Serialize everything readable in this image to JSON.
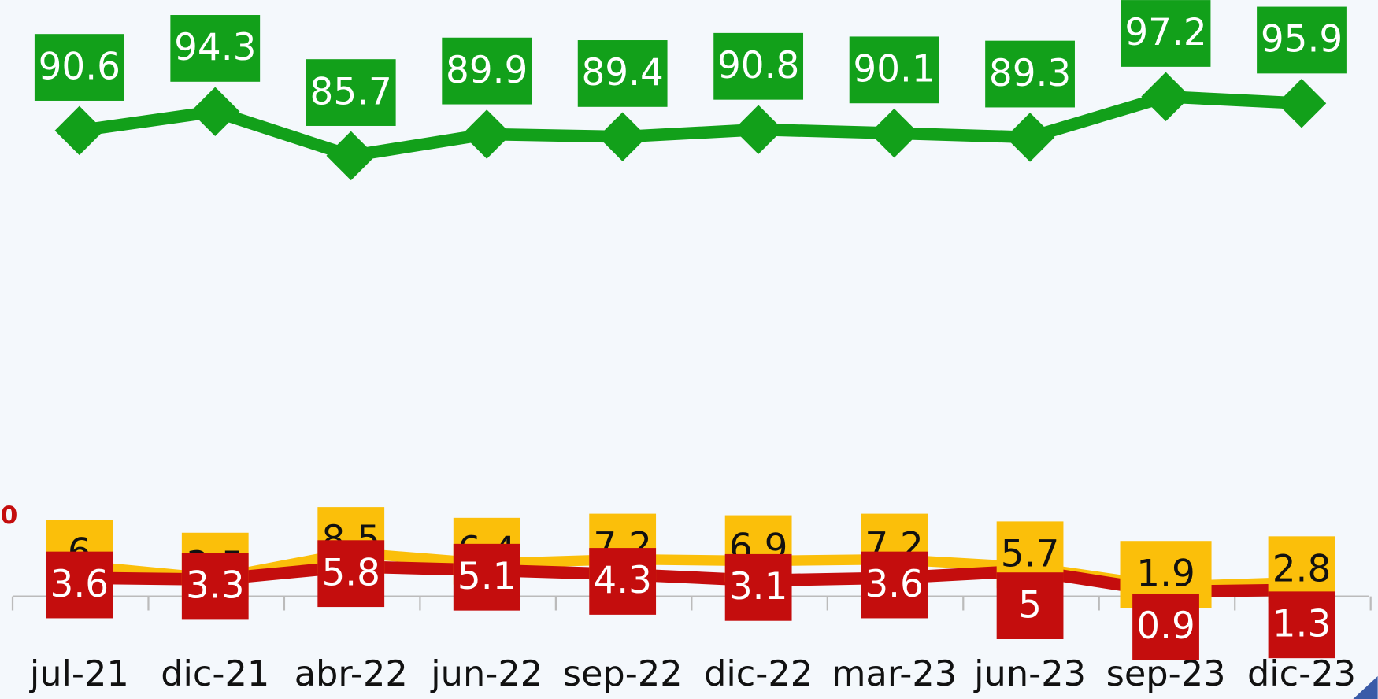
{
  "chart_data": {
    "type": "line",
    "categories": [
      "jul-21",
      "dic-21",
      "abr-22",
      "jun-22",
      "sep-22",
      "dic-22",
      "mar-23",
      "jun-23",
      "sep-23",
      "dic-23"
    ],
    "series": [
      {
        "name": "Green",
        "color": "#12a01a",
        "values": [
          90.6,
          94.3,
          85.7,
          89.9,
          89.4,
          90.8,
          90.1,
          89.3,
          97.2,
          95.9
        ]
      },
      {
        "name": "Yellow",
        "color": "#fbbf0a",
        "values": [
          6.0,
          3.5,
          8.5,
          6.4,
          7.2,
          6.9,
          7.2,
          5.7,
          1.9,
          2.8
        ]
      },
      {
        "name": "Red",
        "color": "#c40d0d",
        "values": [
          3.6,
          3.3,
          5.8,
          5.1,
          4.3,
          3.1,
          3.6,
          5.0,
          0.9,
          1.3
        ]
      }
    ],
    "ylim": [
      -1,
      116
    ],
    "annotation": "0"
  }
}
